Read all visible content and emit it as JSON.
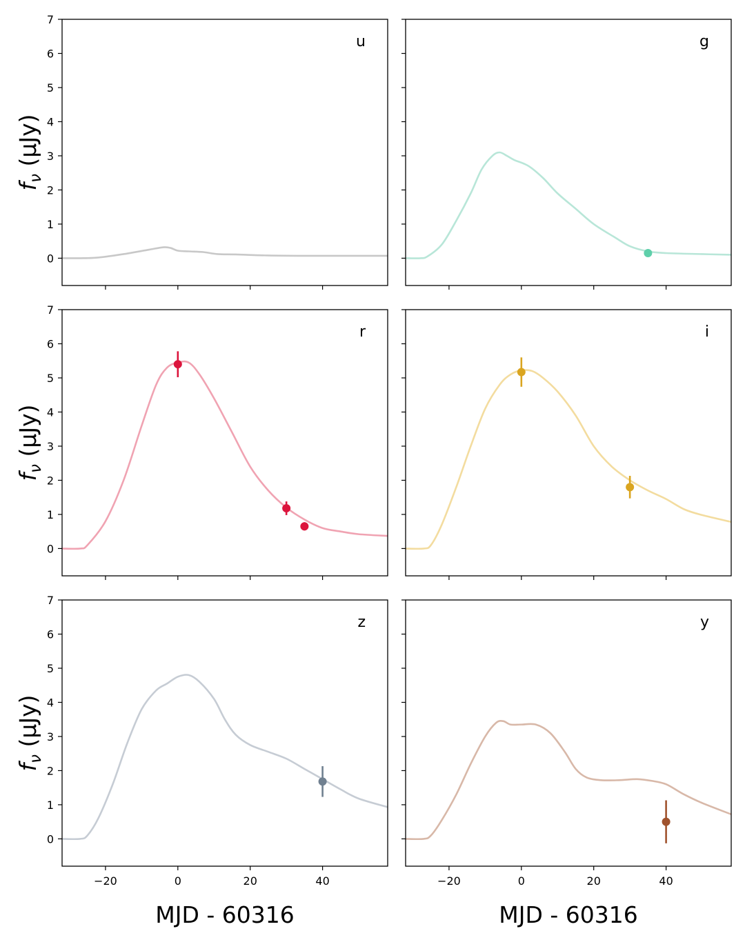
{
  "chart_data": {
    "type": "line",
    "x_label": "MJD - 60316",
    "y_label_prefix": "f",
    "y_label_sub": "ν",
    "y_label_unit": " (μJy)",
    "xlim": [
      -32,
      58
    ],
    "ylim": [
      -0.8,
      7
    ],
    "x_ticks": [
      -20,
      0,
      20,
      40
    ],
    "x_tick_labels": [
      "−20",
      "0",
      "20",
      "40"
    ],
    "y_ticks": [
      0,
      1,
      2,
      3,
      4,
      5,
      6,
      7
    ],
    "y_tick_labels": [
      "0",
      "1",
      "2",
      "3",
      "4",
      "5",
      "6",
      "7"
    ],
    "panels": [
      {
        "band": "u",
        "line_color": "#c8c8c8",
        "point_color": "#8c8c8c",
        "model": [
          [
            -32,
            0
          ],
          [
            -27,
            0
          ],
          [
            -22,
            0.02
          ],
          [
            -15,
            0.12
          ],
          [
            -8,
            0.25
          ],
          [
            -4,
            0.32
          ],
          [
            -2,
            0.3
          ],
          [
            0,
            0.22
          ],
          [
            3,
            0.2
          ],
          [
            7,
            0.18
          ],
          [
            11,
            0.12
          ],
          [
            16,
            0.11
          ],
          [
            25,
            0.08
          ],
          [
            35,
            0.07
          ],
          [
            45,
            0.07
          ],
          [
            58,
            0.07
          ]
        ],
        "points": []
      },
      {
        "band": "g",
        "line_color": "#b8e6d8",
        "point_color": "#5ecfaa",
        "model": [
          [
            -32,
            0
          ],
          [
            -28,
            0
          ],
          [
            -26,
            0.05
          ],
          [
            -22,
            0.4
          ],
          [
            -18,
            1.1
          ],
          [
            -14,
            1.9
          ],
          [
            -11,
            2.6
          ],
          [
            -8,
            3.0
          ],
          [
            -6,
            3.1
          ],
          [
            -4,
            3.0
          ],
          [
            -2,
            2.88
          ],
          [
            2,
            2.7
          ],
          [
            6,
            2.35
          ],
          [
            10,
            1.9
          ],
          [
            15,
            1.45
          ],
          [
            20,
            1.0
          ],
          [
            26,
            0.6
          ],
          [
            30,
            0.35
          ],
          [
            35,
            0.2
          ],
          [
            40,
            0.15
          ],
          [
            50,
            0.12
          ],
          [
            58,
            0.1
          ]
        ],
        "points": [
          {
            "x": 35,
            "y": 0.15,
            "err": 0.05
          }
        ]
      },
      {
        "band": "r",
        "line_color": "#f0a3b2",
        "point_color": "#dc143c",
        "model": [
          [
            -32,
            0
          ],
          [
            -27,
            0
          ],
          [
            -25,
            0.1
          ],
          [
            -20,
            0.8
          ],
          [
            -15,
            2.0
          ],
          [
            -10,
            3.6
          ],
          [
            -6,
            4.8
          ],
          [
            -3,
            5.3
          ],
          [
            0,
            5.45
          ],
          [
            3,
            5.45
          ],
          [
            6,
            5.1
          ],
          [
            10,
            4.4
          ],
          [
            15,
            3.4
          ],
          [
            20,
            2.4
          ],
          [
            25,
            1.7
          ],
          [
            30,
            1.2
          ],
          [
            35,
            0.85
          ],
          [
            40,
            0.6
          ],
          [
            45,
            0.5
          ],
          [
            50,
            0.42
          ],
          [
            58,
            0.37
          ]
        ],
        "points": [
          {
            "x": 0,
            "y": 5.4,
            "err": 0.38
          },
          {
            "x": 30,
            "y": 1.18,
            "err": 0.2
          },
          {
            "x": 35,
            "y": 0.65,
            "err": 0.12
          }
        ]
      },
      {
        "band": "i",
        "line_color": "#f3dc9f",
        "point_color": "#daa520",
        "model": [
          [
            -32,
            0
          ],
          [
            -27,
            0
          ],
          [
            -25,
            0.1
          ],
          [
            -22,
            0.7
          ],
          [
            -18,
            1.8
          ],
          [
            -14,
            3.0
          ],
          [
            -10,
            4.1
          ],
          [
            -6,
            4.8
          ],
          [
            -3,
            5.1
          ],
          [
            0,
            5.22
          ],
          [
            3,
            5.2
          ],
          [
            6,
            5.0
          ],
          [
            10,
            4.6
          ],
          [
            15,
            3.9
          ],
          [
            20,
            3.0
          ],
          [
            25,
            2.4
          ],
          [
            30,
            2.0
          ],
          [
            35,
            1.7
          ],
          [
            40,
            1.45
          ],
          [
            45,
            1.15
          ],
          [
            50,
            0.98
          ],
          [
            58,
            0.78
          ]
        ],
        "points": [
          {
            "x": 0,
            "y": 5.17,
            "err": 0.43
          },
          {
            "x": 30,
            "y": 1.8,
            "err": 0.33
          }
        ]
      },
      {
        "band": "z",
        "line_color": "#c6ccd4",
        "point_color": "#708090",
        "model": [
          [
            -32,
            0
          ],
          [
            -27,
            0
          ],
          [
            -25,
            0.1
          ],
          [
            -22,
            0.6
          ],
          [
            -18,
            1.6
          ],
          [
            -14,
            2.8
          ],
          [
            -10,
            3.8
          ],
          [
            -6,
            4.35
          ],
          [
            -3,
            4.55
          ],
          [
            0,
            4.75
          ],
          [
            3,
            4.8
          ],
          [
            6,
            4.6
          ],
          [
            10,
            4.1
          ],
          [
            13,
            3.5
          ],
          [
            16,
            3.05
          ],
          [
            20,
            2.75
          ],
          [
            25,
            2.55
          ],
          [
            30,
            2.35
          ],
          [
            35,
            2.05
          ],
          [
            40,
            1.75
          ],
          [
            45,
            1.45
          ],
          [
            50,
            1.18
          ],
          [
            58,
            0.93
          ]
        ],
        "points": [
          {
            "x": 40,
            "y": 1.68,
            "err": 0.45
          }
        ]
      },
      {
        "band": "y",
        "line_color": "#d8b8a8",
        "point_color": "#a0522d",
        "model": [
          [
            -32,
            0
          ],
          [
            -27,
            0
          ],
          [
            -25,
            0.1
          ],
          [
            -22,
            0.55
          ],
          [
            -18,
            1.3
          ],
          [
            -14,
            2.2
          ],
          [
            -10,
            3.0
          ],
          [
            -7,
            3.4
          ],
          [
            -5,
            3.45
          ],
          [
            -3,
            3.35
          ],
          [
            0,
            3.35
          ],
          [
            4,
            3.35
          ],
          [
            8,
            3.1
          ],
          [
            12,
            2.55
          ],
          [
            15,
            2.05
          ],
          [
            18,
            1.8
          ],
          [
            22,
            1.72
          ],
          [
            27,
            1.72
          ],
          [
            32,
            1.75
          ],
          [
            36,
            1.7
          ],
          [
            40,
            1.6
          ],
          [
            45,
            1.3
          ],
          [
            50,
            1.05
          ],
          [
            58,
            0.72
          ]
        ],
        "points": [
          {
            "x": 40,
            "y": 0.5,
            "err": 0.63
          }
        ]
      }
    ]
  }
}
